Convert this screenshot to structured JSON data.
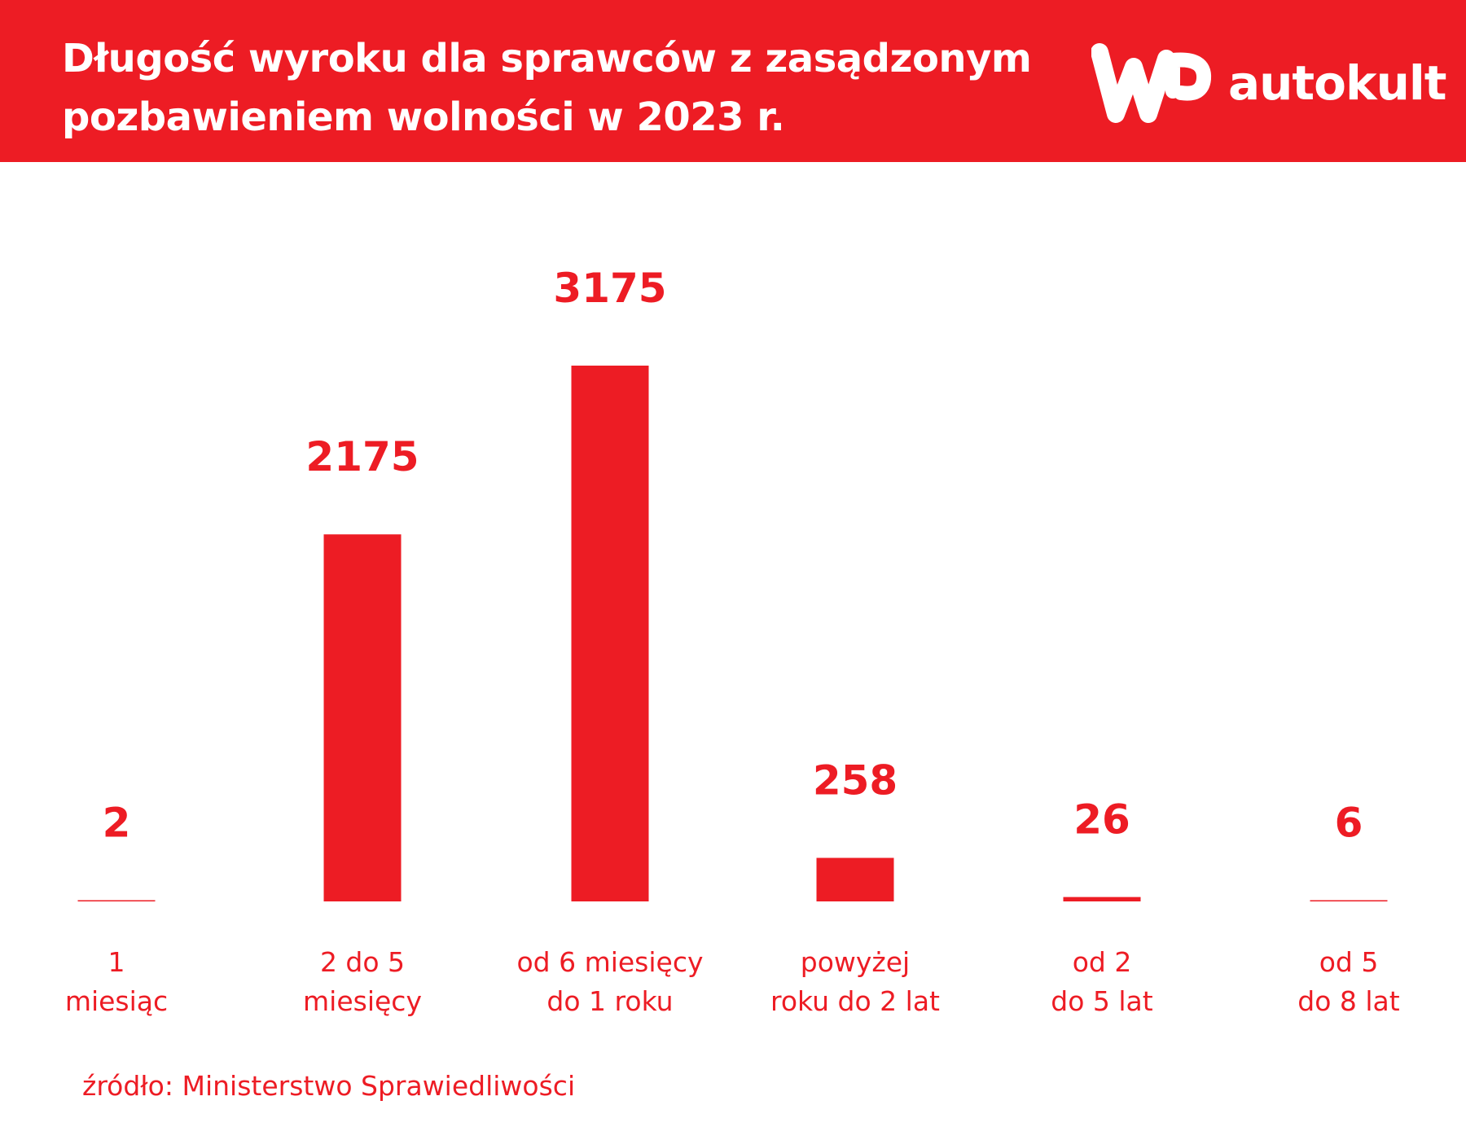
{
  "header": {
    "title_line1": "Długość wyroku dla sprawców z zasądzonym",
    "title_line2": "pozbawieniem wolności w 2023 r.",
    "logo_text": "autokult",
    "logo_mark": "WP"
  },
  "colors": {
    "accent": "#ed1c24",
    "background": "#ffffff",
    "header_text": "#ffffff"
  },
  "chart_data": {
    "type": "bar",
    "categories": [
      [
        "1",
        "miesiąc"
      ],
      [
        "2 do 5",
        "miesięcy"
      ],
      [
        "od 6 miesięcy",
        "do 1 roku"
      ],
      [
        "powyżej",
        "roku do 2 lat"
      ],
      [
        "od 2",
        "do 5 lat"
      ],
      [
        "od 5",
        "do 8 lat"
      ]
    ],
    "values": [
      2,
      2175,
      3175,
      258,
      26,
      6
    ],
    "data_labels": [
      "2",
      "2175",
      "3175",
      "258",
      "26",
      "6"
    ],
    "grid": false,
    "legend": "none"
  },
  "source": "źródło: Ministerstwo Sprawiedliwości"
}
